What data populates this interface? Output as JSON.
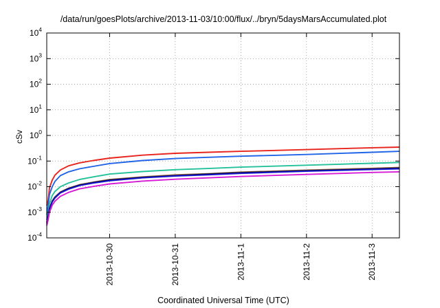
{
  "chart_data": {
    "type": "line",
    "title": "/data/run/goesPlots/archive/2013-11-03/10:00/flux/../bryn/5daysMarsAccumulated.plot",
    "xlabel": "Coordinated Universal Time (UTC)",
    "ylabel": "cSv",
    "y_scale": "log",
    "ylim": [
      0.0001,
      10000
    ],
    "y_ticks": [
      {
        "base": "10",
        "exp": "-4",
        "value": 0.0001
      },
      {
        "base": "10",
        "exp": "-3",
        "value": 0.001
      },
      {
        "base": "10",
        "exp": "-2",
        "value": 0.01
      },
      {
        "base": "10",
        "exp": "-1",
        "value": 0.1
      },
      {
        "base": "10",
        "exp": "0",
        "value": 1
      },
      {
        "base": "10",
        "exp": "1",
        "value": 10
      },
      {
        "base": "10",
        "exp": "2",
        "value": 100
      },
      {
        "base": "10",
        "exp": "3",
        "value": 1000
      },
      {
        "base": "10",
        "exp": "4",
        "value": 10000
      }
    ],
    "xlim": [
      "2013-10-29 01:00",
      "2013-11-03 10:00"
    ],
    "x_ticks": [
      {
        "label": "2013-10-30",
        "date": "2013-10-30 00:00"
      },
      {
        "label": "2013-10-31",
        "date": "2013-10-31 00:00"
      },
      {
        "label": "2013-11-1",
        "date": "2013-11-01 00:00"
      },
      {
        "label": "2013-11-2",
        "date": "2013-11-02 00:00"
      },
      {
        "label": "2013-11-3",
        "date": "2013-11-03 00:00"
      }
    ],
    "grid": true,
    "legend": "none",
    "x": [
      "2013-10-29 01:00",
      "2013-10-29 01:30",
      "2013-10-29 02:00",
      "2013-10-29 03:00",
      "2013-10-29 04:00",
      "2013-10-29 06:00",
      "2013-10-29 09:00",
      "2013-10-29 13:00",
      "2013-10-29 18:00",
      "2013-10-30 00:00",
      "2013-10-30 12:00",
      "2013-10-31 00:00",
      "2013-10-31 12:00",
      "2013-11-01 00:00",
      "2013-11-02 00:00",
      "2013-11-03 00:00",
      "2013-11-03 10:00"
    ],
    "series": [
      {
        "color": "#e8231c",
        "values": [
          0.0018,
          0.003,
          0.009,
          0.018,
          0.028,
          0.045,
          0.065,
          0.085,
          0.105,
          0.13,
          0.17,
          0.2,
          0.22,
          0.24,
          0.28,
          0.33,
          0.35
        ]
      },
      {
        "color": "#1f63e8",
        "values": [
          0.0008,
          0.0018,
          0.005,
          0.01,
          0.016,
          0.027,
          0.038,
          0.05,
          0.062,
          0.08,
          0.105,
          0.125,
          0.14,
          0.155,
          0.18,
          0.22,
          0.24
        ]
      },
      {
        "color": "#22c19a",
        "values": [
          0.0005,
          0.0009,
          0.0022,
          0.0045,
          0.0065,
          0.01,
          0.014,
          0.019,
          0.024,
          0.031,
          0.039,
          0.046,
          0.051,
          0.058,
          0.069,
          0.082,
          0.088
        ]
      },
      {
        "color": "#9c6b45",
        "values": [
          0.0004,
          0.0007,
          0.0015,
          0.0028,
          0.004,
          0.0062,
          0.0088,
          0.012,
          0.015,
          0.019,
          0.024,
          0.029,
          0.032,
          0.037,
          0.044,
          0.052,
          0.056
        ]
      },
      {
        "color": "#0a0a3c",
        "values": [
          0.0004,
          0.0007,
          0.0014,
          0.0027,
          0.0038,
          0.006,
          0.0085,
          0.0115,
          0.0145,
          0.018,
          0.023,
          0.027,
          0.031,
          0.035,
          0.042,
          0.049,
          0.053
        ]
      },
      {
        "color": "#1515d0",
        "values": [
          0.00035,
          0.00065,
          0.0013,
          0.0025,
          0.0036,
          0.0057,
          0.008,
          0.011,
          0.0138,
          0.017,
          0.022,
          0.026,
          0.029,
          0.033,
          0.04,
          0.047,
          0.05
        ]
      },
      {
        "color": "#d51bd5",
        "values": [
          0.0003,
          0.0005,
          0.001,
          0.0019,
          0.0027,
          0.0042,
          0.006,
          0.0082,
          0.0102,
          0.0128,
          0.0165,
          0.0195,
          0.022,
          0.025,
          0.03,
          0.036,
          0.038
        ]
      }
    ]
  }
}
